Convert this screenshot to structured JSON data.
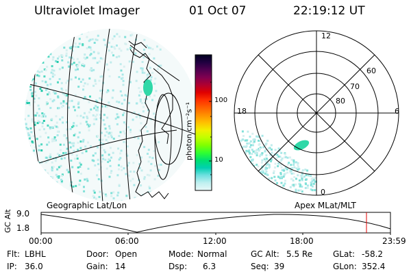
{
  "header": {
    "title": "Ultraviolet Imager",
    "date": "01 Oct 07",
    "time": "22:19:12 UT"
  },
  "colorbar": {
    "unit_label": "photon cm⁻²s⁻¹",
    "ticks": [
      "100",
      "10"
    ],
    "colors": [
      "#000020",
      "#200040",
      "#500050",
      "#800050",
      "#b00030",
      "#e00000",
      "#ff3000",
      "#ff6000",
      "#ff9000",
      "#ffc000",
      "#f0f000",
      "#c0ff00",
      "#80ff00",
      "#30ff30",
      "#00e070",
      "#00d0b0",
      "#70e0e0",
      "#c0f0f0",
      "#e8f8f8"
    ]
  },
  "polar": {
    "mlt_labels": {
      "top": "12",
      "left": "18",
      "right": "6",
      "bottom": "0"
    },
    "lat_labels": [
      "60",
      "70",
      "80"
    ]
  },
  "alt_plot": {
    "ylabel": "GC Alt",
    "y_ticks": [
      "9.0",
      "1.8"
    ],
    "left_title": "Geographic Lat/Lon",
    "right_title": "Apex MLat/MLT",
    "x_ticks": [
      "00:00",
      "06:00",
      "12:00",
      "18:00",
      "23:59"
    ],
    "current_marker_color": "#e00000"
  },
  "footer": {
    "row1": [
      {
        "label": "Flt:",
        "value": "LBHL"
      },
      {
        "label": "Door:",
        "value": "Open"
      },
      {
        "label": "Mode:",
        "value": "Normal"
      },
      {
        "label": "GC Alt:",
        "value": "5.5 Re"
      },
      {
        "label": "GLat:",
        "value": "-58.2"
      }
    ],
    "row2": [
      {
        "label": "IP:",
        "value": "36.0"
      },
      {
        "label": "Gain:",
        "value": "14"
      },
      {
        "label": "Dsp:",
        "value": "6.3"
      },
      {
        "label": "Seq:",
        "value": "39"
      },
      {
        "label": "GLon:",
        "value": "352.4"
      }
    ]
  }
}
